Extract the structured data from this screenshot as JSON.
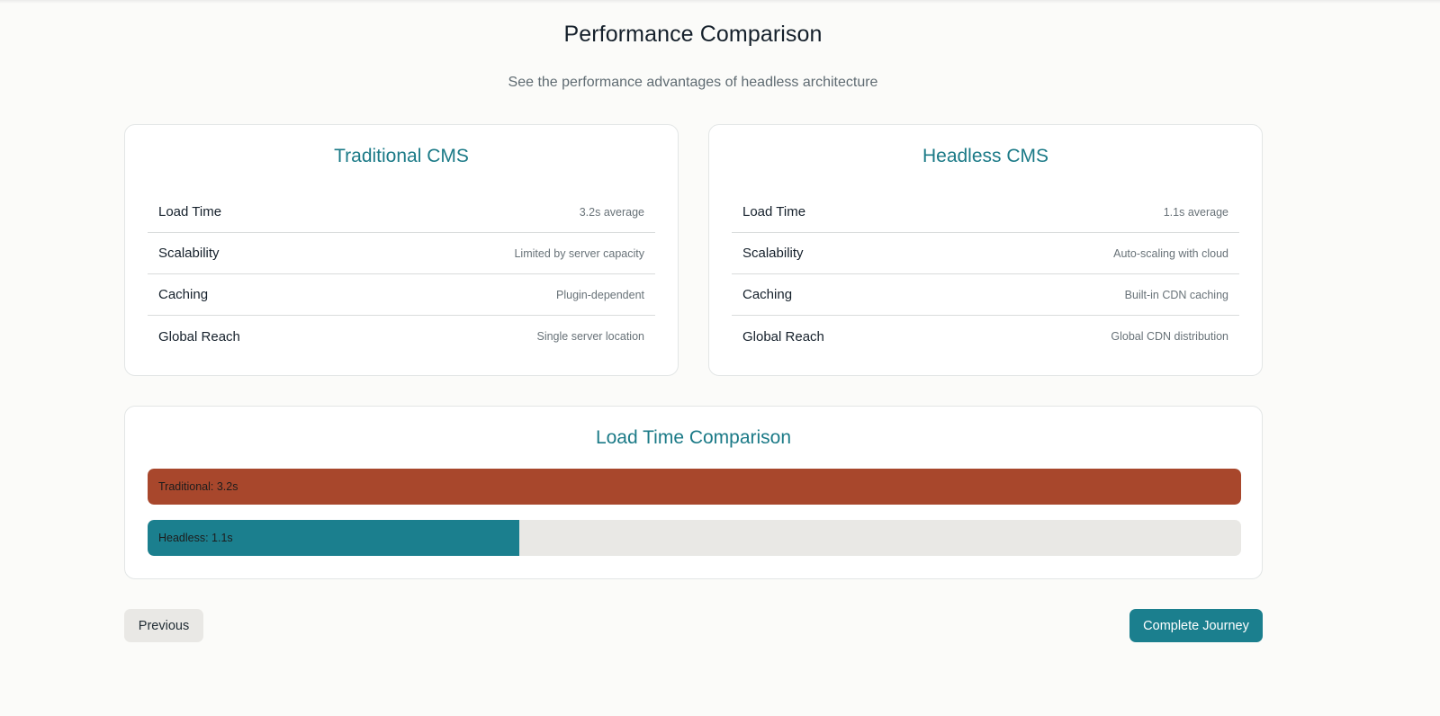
{
  "header": {
    "title": "Performance Comparison",
    "subtitle": "See the performance advantages of headless architecture"
  },
  "traditional": {
    "title": "Traditional CMS",
    "metrics": [
      {
        "label": "Load Time",
        "value": "3.2s average"
      },
      {
        "label": "Scalability",
        "value": "Limited by server capacity"
      },
      {
        "label": "Caching",
        "value": "Plugin-dependent"
      },
      {
        "label": "Global Reach",
        "value": "Single server location"
      }
    ]
  },
  "headless": {
    "title": "Headless CMS",
    "metrics": [
      {
        "label": "Load Time",
        "value": "1.1s average"
      },
      {
        "label": "Scalability",
        "value": "Auto-scaling with cloud"
      },
      {
        "label": "Caching",
        "value": "Built-in CDN caching"
      },
      {
        "label": "Global Reach",
        "value": "Global CDN distribution"
      }
    ]
  },
  "comparison": {
    "title": "Load Time Comparison",
    "bars": [
      {
        "label": "Traditional: 3.2s",
        "value": 3.2,
        "fill_fraction": 1.0,
        "color": "#a8472c"
      },
      {
        "label": "Headless: 1.1s",
        "value": 1.1,
        "fill_fraction": 0.34,
        "color": "#1b7f8e"
      }
    ]
  },
  "navigation": {
    "previous_label": "Previous",
    "complete_label": "Complete Journey"
  },
  "colors": {
    "accent": "#1b7a87",
    "traditional_bar": "#a8472c",
    "headless_bar": "#1b7f8e",
    "track": "#e9e8e5"
  }
}
